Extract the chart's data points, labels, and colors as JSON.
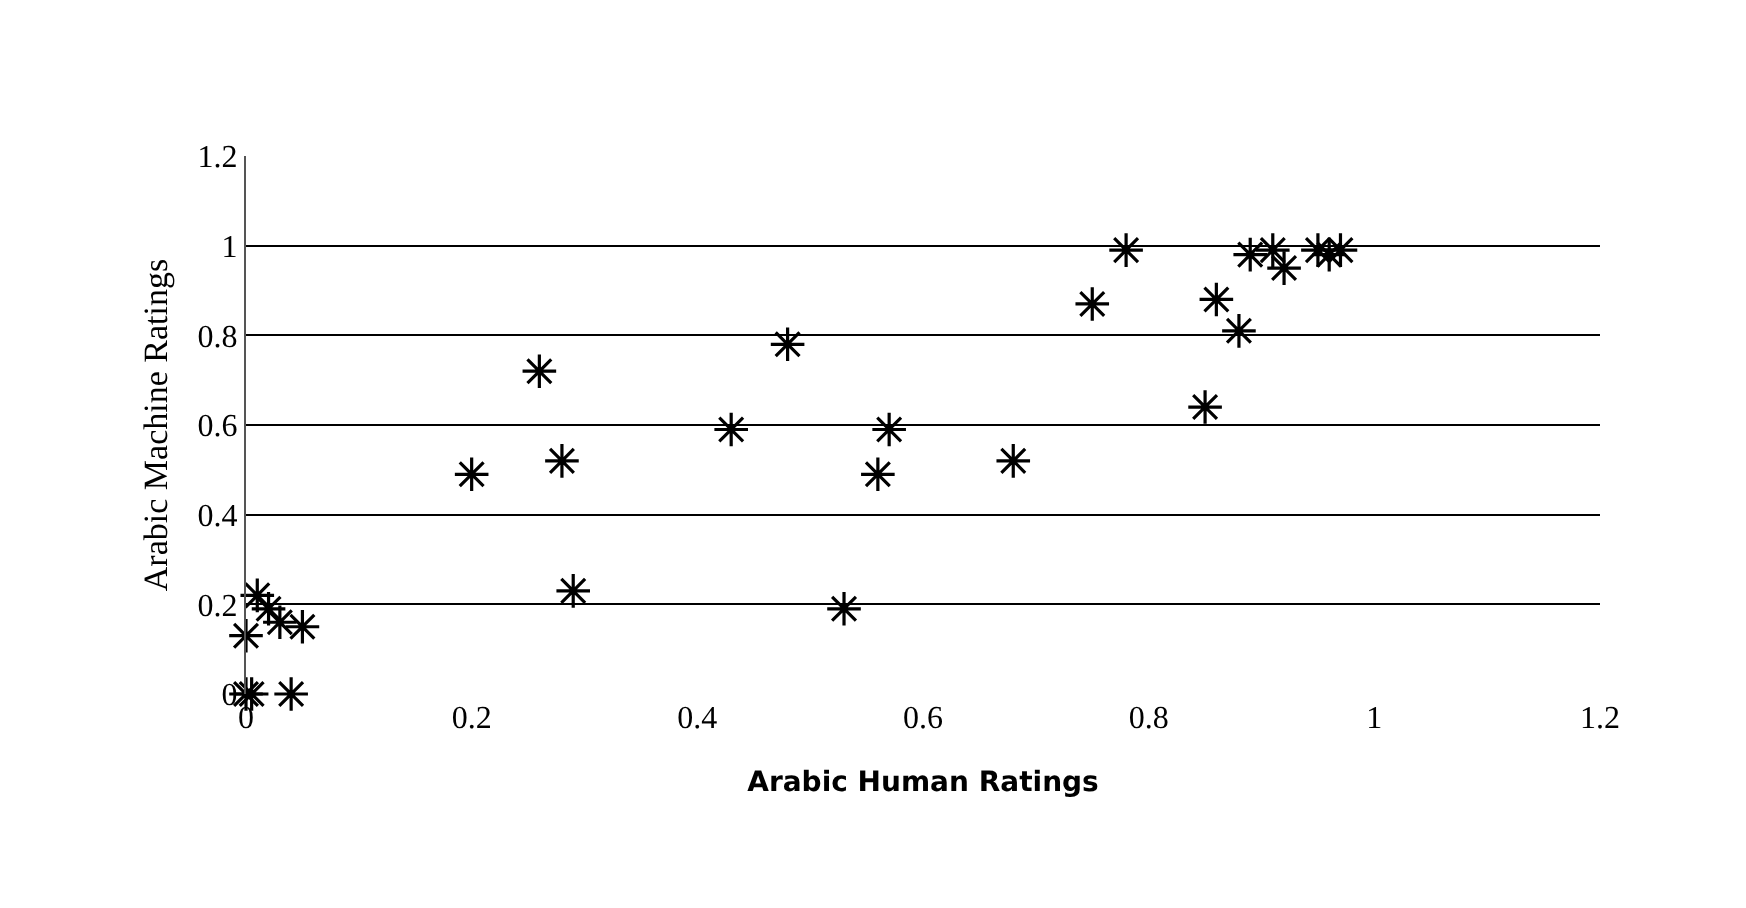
{
  "chart_data": {
    "type": "scatter",
    "xlabel": "Arabic Human Ratings",
    "ylabel": "Arabic Machine Ratings",
    "x": [
      0,
      0.005,
      0.04,
      0,
      0.01,
      0.02,
      0.03,
      0.05,
      0.2,
      0.26,
      0.28,
      0.29,
      0.43,
      0.48,
      0.53,
      0.56,
      0.57,
      0.68,
      0.75,
      0.78,
      0.85,
      0.86,
      0.88,
      0.89,
      0.91,
      0.92,
      0.95,
      0.96,
      0.97
    ],
    "values": [
      0,
      0,
      0,
      0.13,
      0.22,
      0.19,
      0.16,
      0.15,
      0.49,
      0.72,
      0.52,
      0.23,
      0.59,
      0.78,
      0.19,
      0.49,
      0.59,
      0.52,
      0.87,
      0.99,
      0.64,
      0.88,
      0.81,
      0.98,
      0.99,
      0.95,
      0.99,
      0.98,
      0.99
    ],
    "color": "#000000",
    "marker": "cross",
    "grid": "y",
    "legend": false,
    "xlim": [
      0,
      1.2
    ],
    "xticks": [
      0,
      0.2,
      0.4,
      0.6,
      0.8,
      1,
      1.2
    ],
    "ylim": [
      0,
      1.2
    ],
    "yticks": [
      0,
      0.2,
      0.4,
      0.6,
      0.8,
      1,
      1.2
    ]
  }
}
